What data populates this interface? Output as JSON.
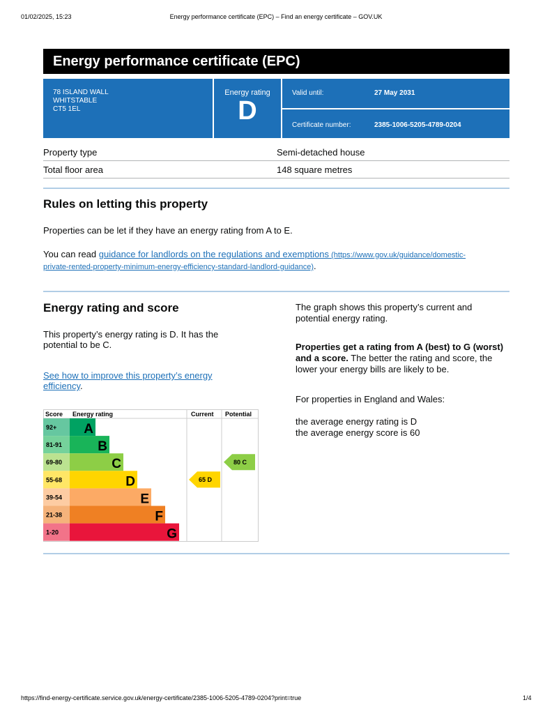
{
  "print_header": {
    "datetime": "01/02/2025, 15:23",
    "title": "Energy performance certificate (EPC) – Find an energy certificate – GOV.UK"
  },
  "print_footer": {
    "url": "https://find-energy-certificate.service.gov.uk/energy-certificate/2385-1006-5205-4789-0204?print=true",
    "page": "1/4"
  },
  "title": "Energy performance certificate (EPC)",
  "summary": {
    "address": [
      "78 ISLAND WALL",
      "WHITSTABLE",
      "CT5 1EL"
    ],
    "rating_label": "Energy rating",
    "rating": "D",
    "valid_until_label": "Valid until:",
    "valid_until": "27 May 2031",
    "certificate_label": "Certificate number:",
    "certificate_number": "2385-1006-5205-4789-0204"
  },
  "details": [
    {
      "label": "Property type",
      "value": "Semi-detached house"
    },
    {
      "label": "Total floor area",
      "value": "148 square metres"
    }
  ],
  "letting": {
    "heading": "Rules on letting this property",
    "para1": "Properties can be let if they have an energy rating from A to E.",
    "para2_prefix": "You can read ",
    "link_text": "guidance for landlords on the regulations and exemptions",
    "link_url_line1": " (https://www.gov.uk/guidance/domestic-",
    "link_url_line2": "private-rented-property-minimum-energy-efficiency-standard-landlord-guidance)",
    "para2_suffix": "."
  },
  "score": {
    "heading": "Energy rating and score",
    "para1_line1": "This property’s energy rating is D. It has the",
    "para1_line2": "potential to be C.",
    "link_line1": "See how to improve this property’s energy",
    "link_line2": "efficiency",
    "link_suffix": ".",
    "right_p1_line1": "The graph shows this property’s current and",
    "right_p1_line2": "potential energy rating.",
    "right_p2_bold_line1": "Properties get a rating from A (best) to G (worst)",
    "right_p2_bold_line2": "and a score.",
    "right_p2_rest_line2": " The better the rating and score, the",
    "right_p2_line3": "lower your energy bills are likely to be.",
    "right_p3": "For properties in England and Wales:",
    "right_p4_line1": "the average energy rating is D",
    "right_p4_line2": "the average energy score is 60"
  },
  "chart_data": {
    "type": "table",
    "headers": {
      "score": "Score",
      "rating": "Energy rating",
      "current": "Current",
      "potential": "Potential"
    },
    "bands": [
      {
        "band": "A",
        "range": "92+",
        "color": "#00a262",
        "tint": "#66c7a0"
      },
      {
        "band": "B",
        "range": "81-91",
        "color": "#19b459",
        "tint": "#75d29b"
      },
      {
        "band": "C",
        "range": "69-80",
        "color": "#8dce46",
        "tint": "#bbe290"
      },
      {
        "band": "D",
        "range": "55-68",
        "color": "#ffd500",
        "tint": "#ffe666"
      },
      {
        "band": "E",
        "range": "39-54",
        "color": "#fcaa65",
        "tint": "#fdcca3"
      },
      {
        "band": "F",
        "range": "21-38",
        "color": "#ef8023",
        "tint": "#f5b37b"
      },
      {
        "band": "G",
        "range": "1-20",
        "color": "#e9153b",
        "tint": "#f27389"
      }
    ],
    "current": {
      "score": 65,
      "band": "D",
      "label": "65  D"
    },
    "potential": {
      "score": 80,
      "band": "C",
      "label": "80  C"
    }
  }
}
